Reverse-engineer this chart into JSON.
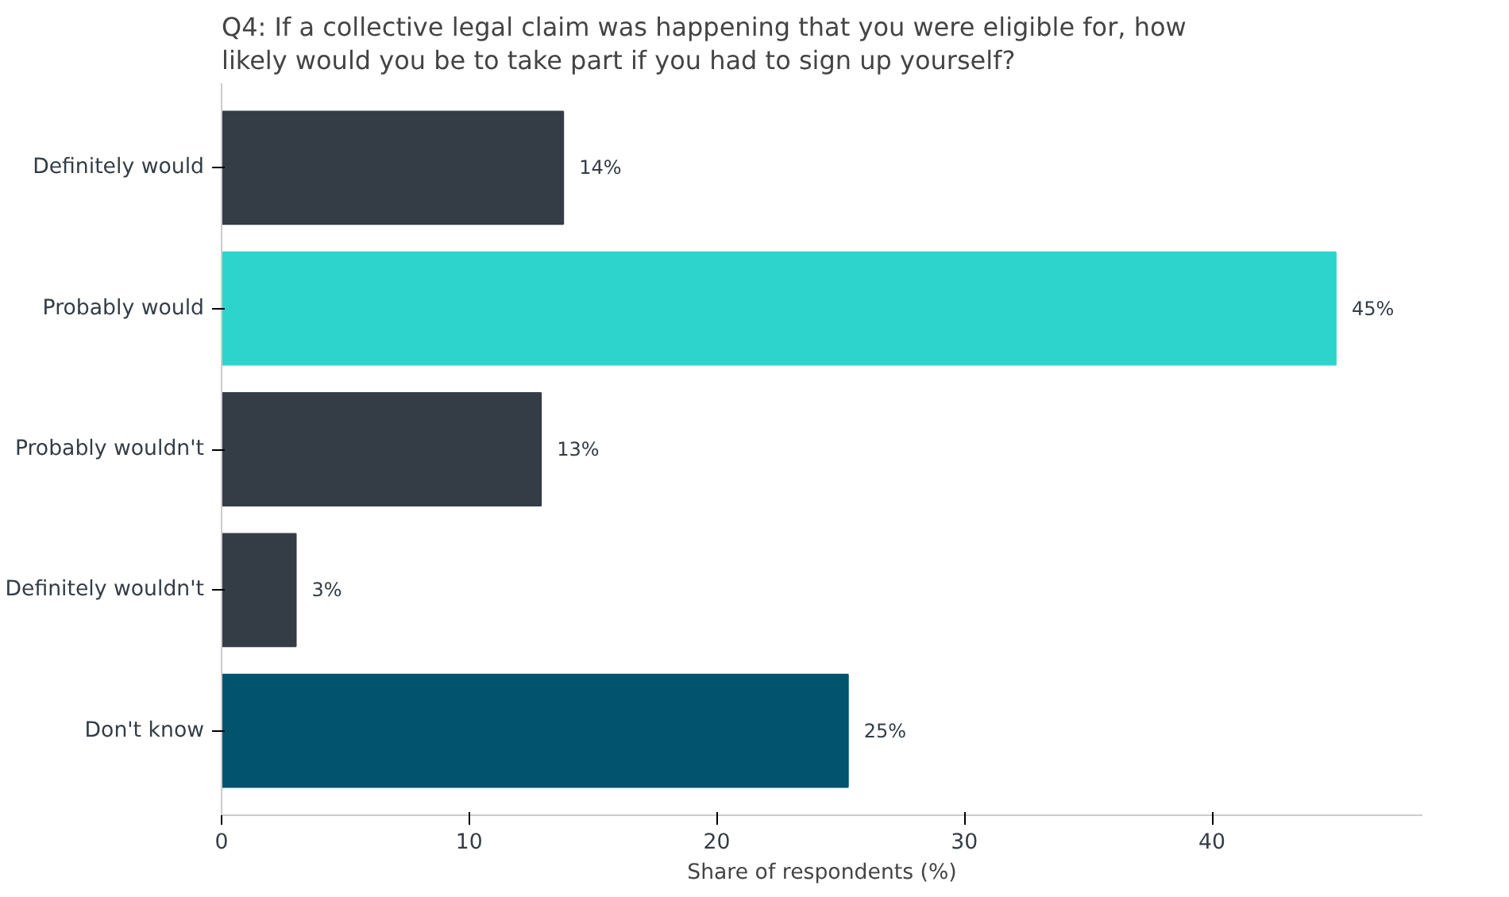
{
  "chart_data": {
    "type": "bar",
    "orientation": "horizontal",
    "title": "Q4: If a collective legal claim was happening that you were eligible for, how\nlikely would you be to take part if you had to sign up yourself?",
    "xlabel": "Share of respondents (%)",
    "categories": [
      "Definitely would",
      "Probably would",
      "Probably wouldn't",
      "Definitely wouldn't",
      "Don't know"
    ],
    "values": [
      13.8,
      45.0,
      12.9,
      3.0,
      25.3
    ],
    "colors": [
      "#343d46",
      "#2dd4cb",
      "#343d46",
      "#343d46",
      "#02536e"
    ],
    "value_labels": [
      "14%",
      "45%",
      "13%",
      "3%",
      "25%"
    ],
    "xlim": [
      0,
      48.5
    ],
    "xticks": [
      0,
      10,
      20,
      30,
      40
    ],
    "grid": false
  }
}
